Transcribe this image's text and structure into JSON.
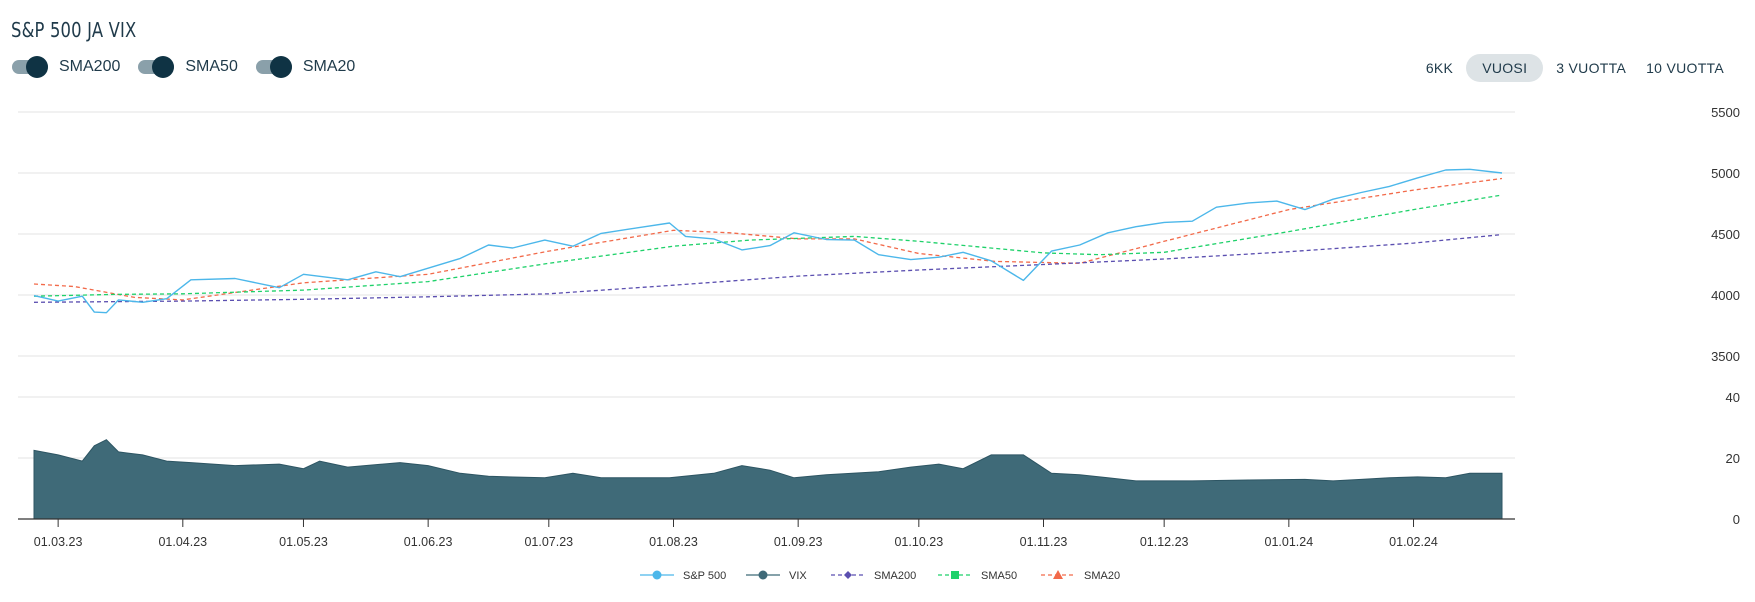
{
  "title": "S&P 500 JA VIX",
  "toggles": [
    {
      "label": "SMA200",
      "on": true
    },
    {
      "label": "SMA50",
      "on": true
    },
    {
      "label": "SMA20",
      "on": true
    }
  ],
  "ranges": [
    {
      "label": "6KK",
      "active": false
    },
    {
      "label": "VUOSI",
      "active": true
    },
    {
      "label": "3 VUOTTA",
      "active": false
    },
    {
      "label": "10 VUOTTA",
      "active": false
    }
  ],
  "colors": {
    "sp500": "#4cb7ea",
    "vix": "#3f6a78",
    "sma200": "#5b4fb0",
    "sma50": "#1fd16a",
    "sma20": "#f26a4a",
    "grid": "#e3e3e3",
    "axis": "#333333"
  },
  "chart_data": [
    {
      "type": "line",
      "panel": "upper",
      "y_ticks": [
        "5500",
        "5000",
        "4500",
        "4000",
        "3500"
      ],
      "ylim": [
        3500,
        5500
      ],
      "date_range": [
        "2023-02-23",
        "2024-02-23"
      ],
      "series": [
        {
          "name": "S&P 500",
          "color_key": "sp500",
          "style": "solid",
          "points": [
            [
              "2023-02-23",
              3995
            ],
            [
              "2023-03-01",
              3950
            ],
            [
              "2023-03-07",
              3990
            ],
            [
              "2023-03-10",
              3860
            ],
            [
              "2023-03-13",
              3855
            ],
            [
              "2023-03-16",
              3960
            ],
            [
              "2023-03-22",
              3940
            ],
            [
              "2023-03-28",
              3970
            ],
            [
              "2023-04-03",
              4125
            ],
            [
              "2023-04-14",
              4135
            ],
            [
              "2023-04-25",
              4060
            ],
            [
              "2023-05-01",
              4170
            ],
            [
              "2023-05-12",
              4125
            ],
            [
              "2023-05-19",
              4190
            ],
            [
              "2023-05-25",
              4150
            ],
            [
              "2023-06-01",
              4220
            ],
            [
              "2023-06-09",
              4300
            ],
            [
              "2023-06-16",
              4410
            ],
            [
              "2023-06-22",
              4385
            ],
            [
              "2023-06-30",
              4450
            ],
            [
              "2023-07-07",
              4400
            ],
            [
              "2023-07-14",
              4505
            ],
            [
              "2023-07-21",
              4540
            ],
            [
              "2023-07-31",
              4590
            ],
            [
              "2023-08-04",
              4480
            ],
            [
              "2023-08-11",
              4460
            ],
            [
              "2023-08-18",
              4370
            ],
            [
              "2023-08-25",
              4405
            ],
            [
              "2023-08-31",
              4510
            ],
            [
              "2023-09-08",
              4455
            ],
            [
              "2023-09-15",
              4450
            ],
            [
              "2023-09-21",
              4330
            ],
            [
              "2023-09-29",
              4290
            ],
            [
              "2023-10-06",
              4310
            ],
            [
              "2023-10-12",
              4350
            ],
            [
              "2023-10-19",
              4280
            ],
            [
              "2023-10-27",
              4120
            ],
            [
              "2023-11-03",
              4360
            ],
            [
              "2023-11-10",
              4410
            ],
            [
              "2023-11-17",
              4510
            ],
            [
              "2023-11-24",
              4560
            ],
            [
              "2023-12-01",
              4595
            ],
            [
              "2023-12-08",
              4605
            ],
            [
              "2023-12-14",
              4720
            ],
            [
              "2023-12-22",
              4755
            ],
            [
              "2023-12-29",
              4770
            ],
            [
              "2024-01-05",
              4700
            ],
            [
              "2024-01-12",
              4785
            ],
            [
              "2024-01-19",
              4840
            ],
            [
              "2024-01-26",
              4890
            ],
            [
              "2024-02-02",
              4960
            ],
            [
              "2024-02-09",
              5025
            ],
            [
              "2024-02-15",
              5030
            ],
            [
              "2024-02-23",
              5000
            ]
          ]
        },
        {
          "name": "SMA200",
          "color_key": "sma200",
          "style": "dashed",
          "points": [
            [
              "2023-02-23",
              3940
            ],
            [
              "2023-04-01",
              3950
            ],
            [
              "2023-05-01",
              3965
            ],
            [
              "2023-06-01",
              3985
            ],
            [
              "2023-07-01",
              4010
            ],
            [
              "2023-08-01",
              4080
            ],
            [
              "2023-09-01",
              4155
            ],
            [
              "2023-10-01",
              4205
            ],
            [
              "2023-11-01",
              4250
            ],
            [
              "2023-12-01",
              4295
            ],
            [
              "2024-01-01",
              4355
            ],
            [
              "2024-02-01",
              4425
            ],
            [
              "2024-02-23",
              4495
            ]
          ]
        },
        {
          "name": "SMA50",
          "color_key": "sma50",
          "style": "dashed",
          "points": [
            [
              "2023-02-23",
              3990
            ],
            [
              "2023-03-15",
              4005
            ],
            [
              "2023-04-01",
              4010
            ],
            [
              "2023-05-01",
              4040
            ],
            [
              "2023-06-01",
              4110
            ],
            [
              "2023-07-01",
              4260
            ],
            [
              "2023-08-01",
              4400
            ],
            [
              "2023-08-20",
              4450
            ],
            [
              "2023-09-15",
              4480
            ],
            [
              "2023-10-01",
              4440
            ],
            [
              "2023-11-01",
              4345
            ],
            [
              "2023-11-15",
              4330
            ],
            [
              "2023-12-01",
              4350
            ],
            [
              "2024-01-01",
              4520
            ],
            [
              "2024-02-01",
              4700
            ],
            [
              "2024-02-23",
              4820
            ]
          ]
        },
        {
          "name": "SMA20",
          "color_key": "sma20",
          "style": "dashed",
          "points": [
            [
              "2023-02-23",
              4090
            ],
            [
              "2023-03-05",
              4070
            ],
            [
              "2023-03-20",
              3980
            ],
            [
              "2023-04-01",
              3960
            ],
            [
              "2023-05-01",
              4100
            ],
            [
              "2023-06-01",
              4170
            ],
            [
              "2023-07-01",
              4360
            ],
            [
              "2023-08-01",
              4530
            ],
            [
              "2023-08-15",
              4510
            ],
            [
              "2023-09-01",
              4460
            ],
            [
              "2023-09-15",
              4460
            ],
            [
              "2023-10-01",
              4340
            ],
            [
              "2023-10-20",
              4275
            ],
            [
              "2023-11-10",
              4260
            ],
            [
              "2023-12-01",
              4440
            ],
            [
              "2024-01-01",
              4700
            ],
            [
              "2024-02-01",
              4860
            ],
            [
              "2024-02-23",
              4955
            ]
          ]
        }
      ]
    },
    {
      "type": "area",
      "panel": "lower",
      "y_ticks": [
        "40",
        "20",
        "0"
      ],
      "ylim": [
        0,
        40
      ],
      "series": [
        {
          "name": "VIX",
          "color_key": "vix",
          "points": [
            [
              "2023-02-23",
              22.5
            ],
            [
              "2023-03-01",
              21
            ],
            [
              "2023-03-07",
              19
            ],
            [
              "2023-03-10",
              24
            ],
            [
              "2023-03-13",
              26
            ],
            [
              "2023-03-16",
              22
            ],
            [
              "2023-03-22",
              21
            ],
            [
              "2023-03-28",
              19
            ],
            [
              "2023-04-03",
              18.5
            ],
            [
              "2023-04-14",
              17.5
            ],
            [
              "2023-04-25",
              18
            ],
            [
              "2023-05-01",
              16.5
            ],
            [
              "2023-05-05",
              19
            ],
            [
              "2023-05-12",
              17
            ],
            [
              "2023-05-25",
              18.5
            ],
            [
              "2023-06-01",
              17.5
            ],
            [
              "2023-06-09",
              15
            ],
            [
              "2023-06-16",
              14
            ],
            [
              "2023-06-30",
              13.5
            ],
            [
              "2023-07-07",
              15
            ],
            [
              "2023-07-14",
              13.5
            ],
            [
              "2023-07-31",
              13.5
            ],
            [
              "2023-08-11",
              15
            ],
            [
              "2023-08-18",
              17.5
            ],
            [
              "2023-08-25",
              16
            ],
            [
              "2023-08-31",
              13.5
            ],
            [
              "2023-09-08",
              14.5
            ],
            [
              "2023-09-21",
              15.5
            ],
            [
              "2023-09-29",
              17
            ],
            [
              "2023-10-06",
              18
            ],
            [
              "2023-10-12",
              16.5
            ],
            [
              "2023-10-19",
              21
            ],
            [
              "2023-10-27",
              21
            ],
            [
              "2023-11-03",
              15
            ],
            [
              "2023-11-10",
              14.5
            ],
            [
              "2023-11-17",
              13.5
            ],
            [
              "2023-11-24",
              12.5
            ],
            [
              "2023-12-08",
              12.5
            ],
            [
              "2023-12-22",
              12.8
            ],
            [
              "2024-01-05",
              13
            ],
            [
              "2024-01-12",
              12.5
            ],
            [
              "2024-01-19",
              13
            ],
            [
              "2024-01-26",
              13.5
            ],
            [
              "2024-02-02",
              13.8
            ],
            [
              "2024-02-09",
              13.5
            ],
            [
              "2024-02-15",
              15
            ],
            [
              "2024-02-23",
              15
            ]
          ]
        }
      ]
    }
  ],
  "x_ticks": [
    {
      "label": "01.03.23",
      "date": "2023-03-01"
    },
    {
      "label": "01.04.23",
      "date": "2023-04-01"
    },
    {
      "label": "01.05.23",
      "date": "2023-05-01"
    },
    {
      "label": "01.06.23",
      "date": "2023-06-01"
    },
    {
      "label": "01.07.23",
      "date": "2023-07-01"
    },
    {
      "label": "01.08.23",
      "date": "2023-08-01"
    },
    {
      "label": "01.09.23",
      "date": "2023-09-01"
    },
    {
      "label": "01.10.23",
      "date": "2023-10-01"
    },
    {
      "label": "01.11.23",
      "date": "2023-11-01"
    },
    {
      "label": "01.12.23",
      "date": "2023-12-01"
    },
    {
      "label": "01.01.24",
      "date": "2024-01-01"
    },
    {
      "label": "01.02.24",
      "date": "2024-02-01"
    }
  ],
  "legend": [
    {
      "label": "S&P 500",
      "color_key": "sp500",
      "marker": "circle",
      "dashed": false
    },
    {
      "label": "VIX",
      "color_key": "vix",
      "marker": "circle",
      "dashed": false
    },
    {
      "label": "SMA200",
      "color_key": "sma200",
      "marker": "diamond",
      "dashed": true
    },
    {
      "label": "SMA50",
      "color_key": "sma50",
      "marker": "square",
      "dashed": true
    },
    {
      "label": "SMA20",
      "color_key": "sma20",
      "marker": "triangle",
      "dashed": true
    }
  ]
}
